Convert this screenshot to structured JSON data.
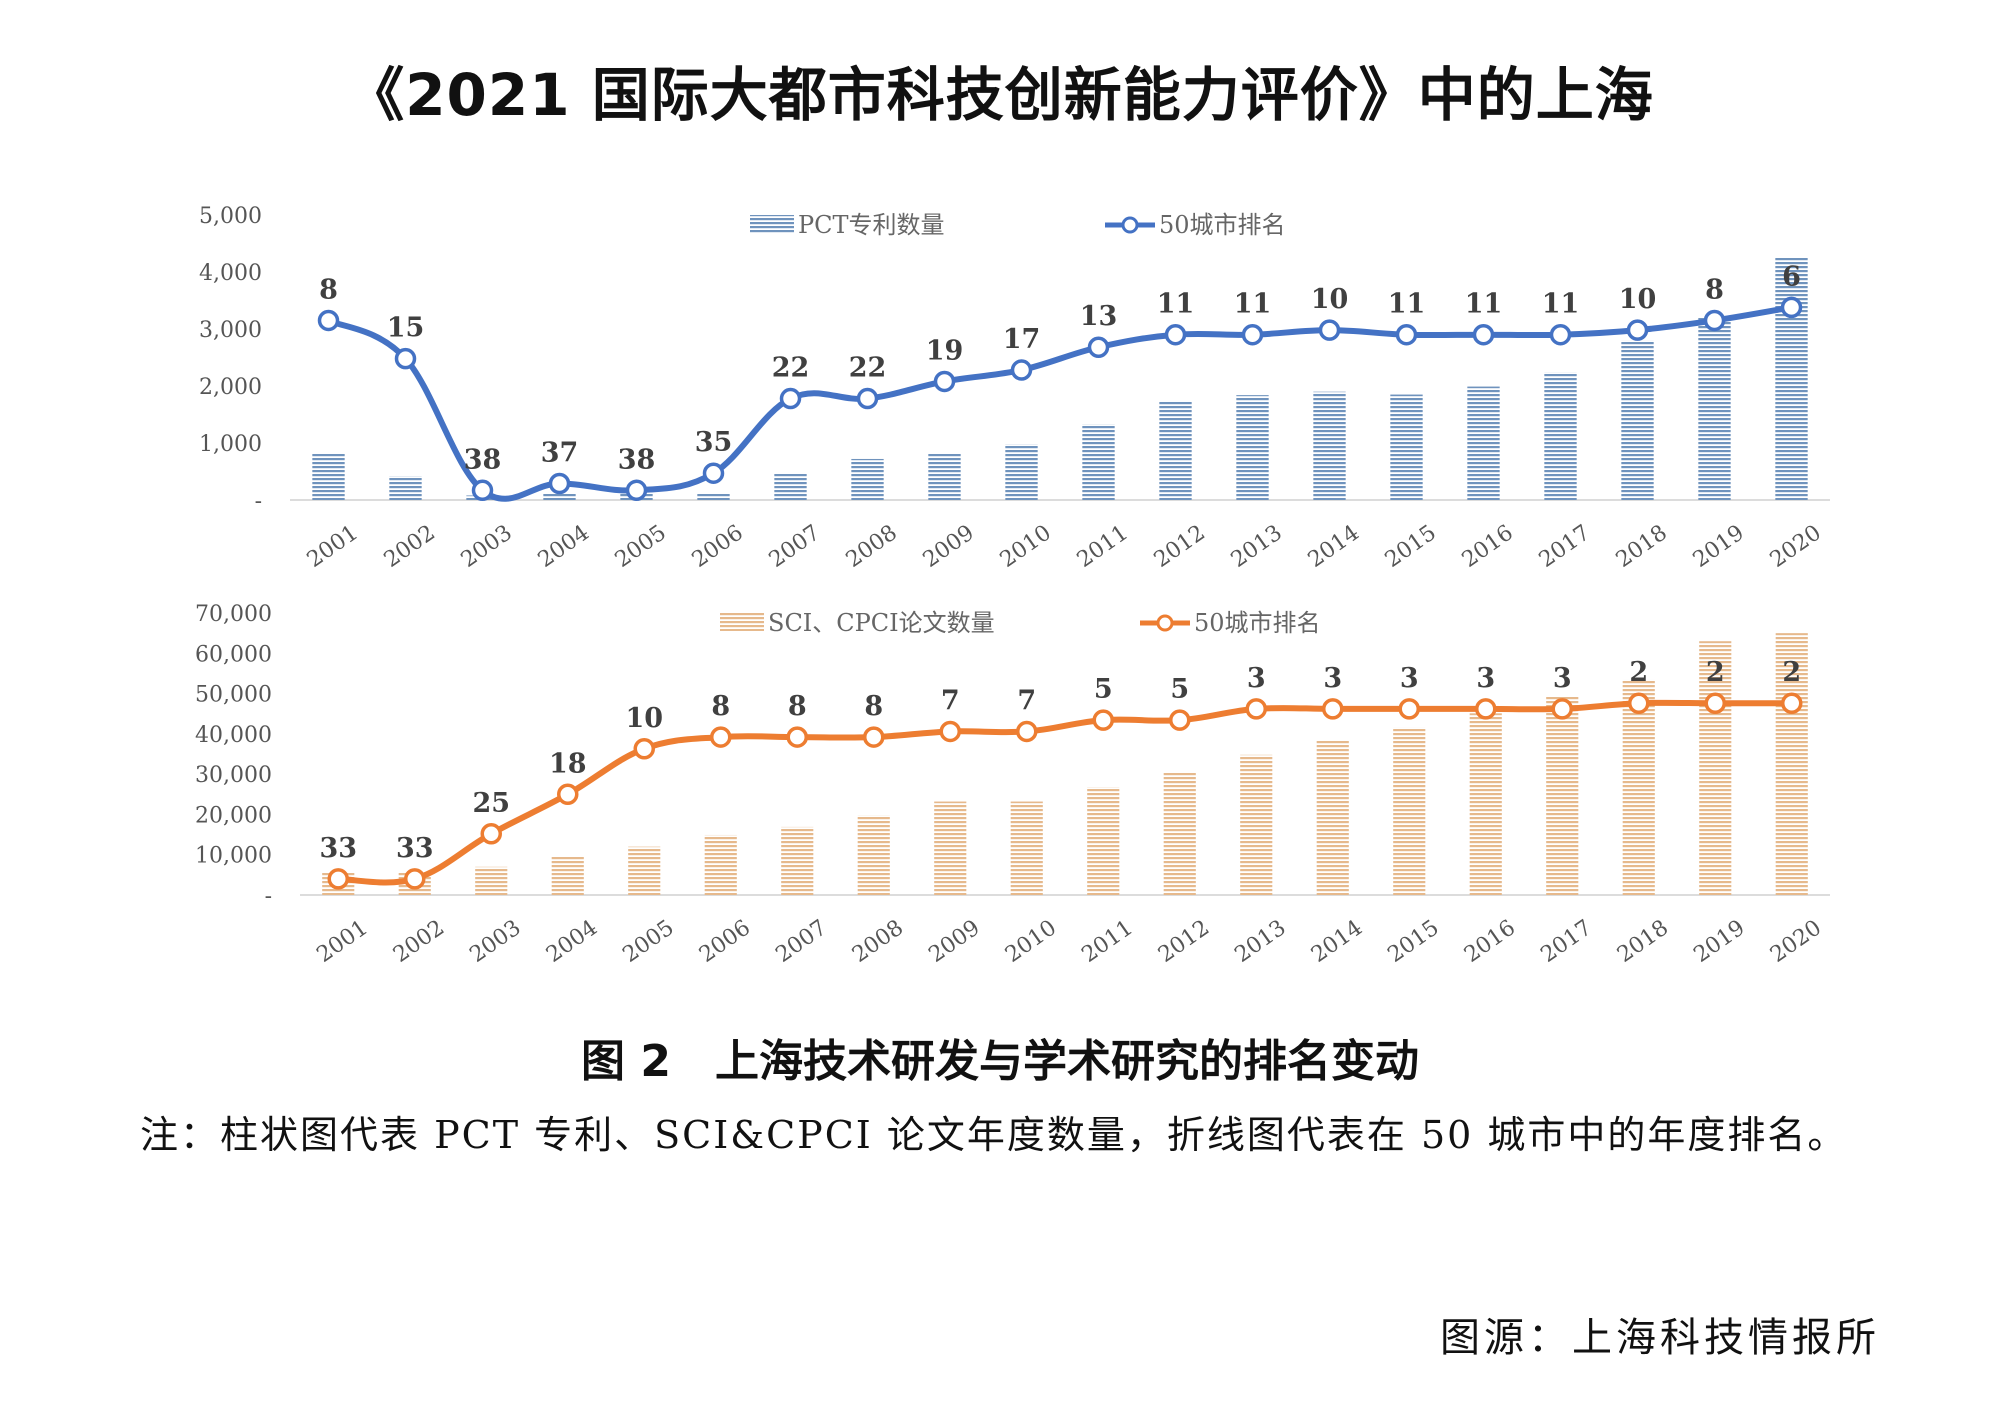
{
  "title": "《2021 国际大都市科技创新能力评价》中的上海",
  "caption": "图 2　上海技术研发与学术研究的排名变动",
  "note": "注：柱状图代表 PCT 专利、SCI&CPCI 论文年度数量，折线图代表在 50 城市中的年度排名。",
  "source": "图源：上海科技情报所",
  "chart_data": [
    {
      "type": "bar",
      "categories": [
        "2001",
        "2002",
        "2003",
        "2004",
        "2005",
        "2006",
        "2007",
        "2008",
        "2009",
        "2010",
        "2011",
        "2012",
        "2013",
        "2014",
        "2015",
        "2016",
        "2017",
        "2018",
        "2019",
        "2020"
      ],
      "ylim": [
        0,
        5000
      ],
      "yticks": [
        "5,000",
        "4,000",
        "3,000",
        "2,000",
        "1,000",
        "-"
      ],
      "bar_color": "#6f93bd",
      "line_color": "#4472c4",
      "series": [
        {
          "name": "PCT专利数量",
          "kind": "bar",
          "values": [
            830,
            420,
            80,
            110,
            150,
            110,
            460,
            720,
            820,
            980,
            1330,
            1740,
            1840,
            1900,
            1850,
            1990,
            2240,
            2800,
            3200,
            4250
          ]
        },
        {
          "name": "50城市排名",
          "kind": "line",
          "labels": [
            8,
            15,
            38,
            37,
            38,
            35,
            22,
            22,
            19,
            17,
            13,
            11,
            11,
            10,
            11,
            11,
            11,
            10,
            8,
            6
          ],
          "plot_values": [
            3150,
            2480,
            170,
            290,
            170,
            470,
            1780,
            1780,
            2080,
            2280,
            2680,
            2900,
            2900,
            2980,
            2900,
            2900,
            2900,
            2980,
            3150,
            3380
          ]
        }
      ],
      "legend_position": "top"
    },
    {
      "type": "bar",
      "categories": [
        "2001",
        "2002",
        "2003",
        "2004",
        "2005",
        "2006",
        "2007",
        "2008",
        "2009",
        "2010",
        "2011",
        "2012",
        "2013",
        "2014",
        "2015",
        "2016",
        "2017",
        "2018",
        "2019",
        "2020"
      ],
      "ylim": [
        0,
        70000
      ],
      "yticks": [
        "70,000",
        "60,000",
        "50,000",
        "40,000",
        "30,000",
        "20,000",
        "10,000",
        "-"
      ],
      "bar_color": "#e6b98c",
      "line_color": "#ed7d31",
      "series": [
        {
          "name": "SCI、CPCI论文数量",
          "kind": "bar",
          "values": [
            5500,
            5500,
            7000,
            9800,
            12000,
            14900,
            16900,
            19800,
            23200,
            23200,
            26800,
            30300,
            34800,
            38300,
            41600,
            45100,
            49500,
            53500,
            63000,
            65000
          ]
        },
        {
          "name": "50城市排名",
          "kind": "line",
          "labels": [
            33,
            33,
            25,
            18,
            10,
            8,
            8,
            8,
            7,
            7,
            5,
            5,
            3,
            3,
            3,
            3,
            3,
            2,
            2,
            2
          ],
          "plot_values": [
            4000,
            4000,
            15200,
            25000,
            36300,
            39200,
            39200,
            39200,
            40600,
            40600,
            43400,
            43400,
            46200,
            46200,
            46200,
            46200,
            46200,
            47600,
            47600,
            47600
          ]
        }
      ],
      "legend_position": "top"
    }
  ]
}
